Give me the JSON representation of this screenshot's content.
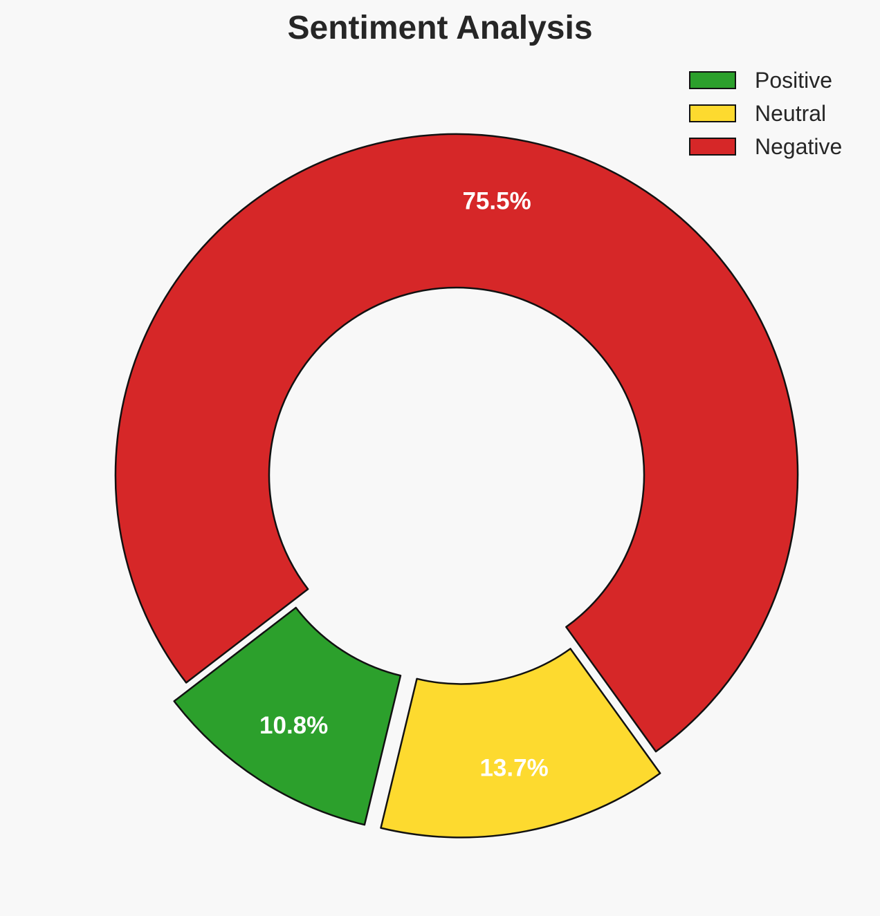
{
  "chart_data": {
    "type": "pie",
    "variant": "donut",
    "title": "Sentiment Analysis",
    "legend_position": "top-right",
    "slices": [
      {
        "label": "Positive",
        "value": 10.8,
        "display": "10.8%",
        "color": "#2ca02c",
        "exploded": true
      },
      {
        "label": "Neutral",
        "value": 13.7,
        "display": "13.7%",
        "color": "#fdda2f",
        "exploded": true
      },
      {
        "label": "Negative",
        "value": 75.5,
        "display": "75.5%",
        "color": "#d62728",
        "exploded": false
      }
    ]
  }
}
